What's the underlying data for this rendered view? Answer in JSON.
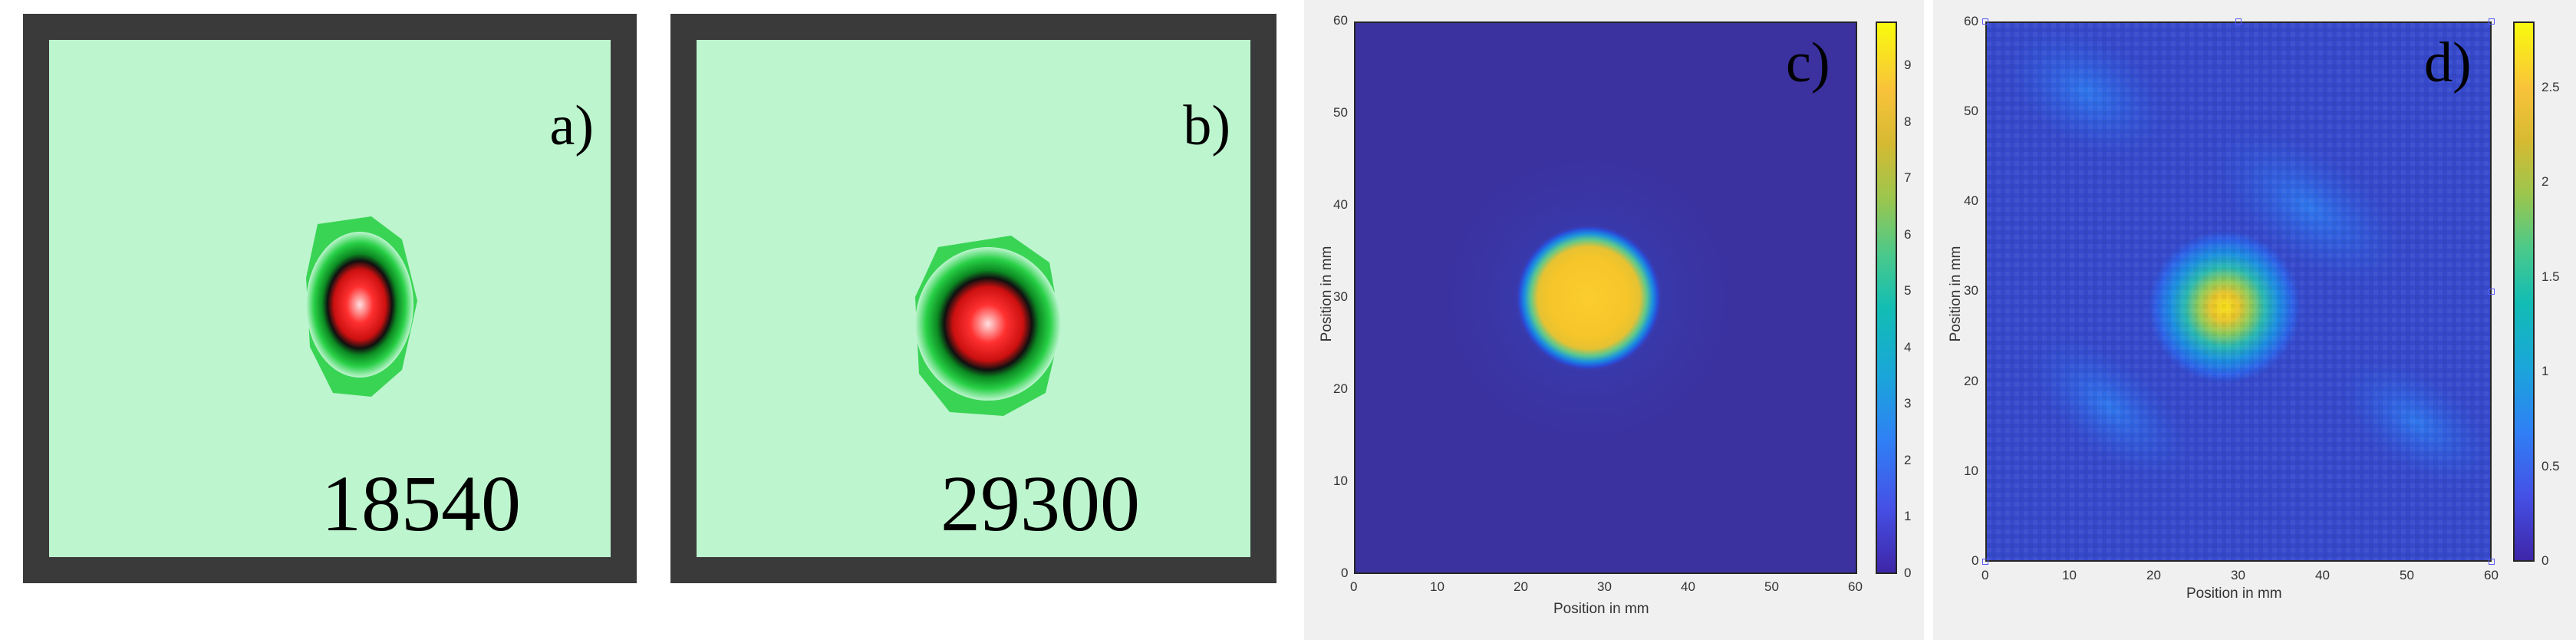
{
  "panels": {
    "a": {
      "letter": "a)",
      "number": "18540"
    },
    "b": {
      "letter": "b)",
      "number": "29300"
    },
    "c": {
      "letter": "c)",
      "xlabel": "Position in mm",
      "ylabel": "Position in mm",
      "x_ticks": [
        "0",
        "10",
        "20",
        "30",
        "40",
        "50",
        "60"
      ],
      "y_ticks": [
        "0",
        "10",
        "20",
        "30",
        "40",
        "50",
        "60"
      ],
      "colorbar_ticks": [
        "0",
        "1",
        "2",
        "3",
        "4",
        "5",
        "6",
        "7",
        "8",
        "9"
      ]
    },
    "d": {
      "letter": "d)",
      "xlabel": "Position in mm",
      "ylabel": "Position in mm",
      "x_ticks": [
        "0",
        "10",
        "20",
        "30",
        "40",
        "50",
        "60"
      ],
      "y_ticks": [
        "0",
        "10",
        "20",
        "30",
        "40",
        "50",
        "60"
      ],
      "colorbar_ticks": [
        "0",
        "0.5",
        "1",
        "1.5",
        "2",
        "2.5"
      ]
    }
  },
  "chart_data": [
    {
      "type": "heatmap",
      "panel": "c",
      "xlabel": "Position in mm",
      "ylabel": "Position in mm",
      "xlim": [
        0,
        60
      ],
      "ylim": [
        0,
        60
      ],
      "colorbar_range": [
        0,
        9.8
      ],
      "colormap": "parula",
      "spot": {
        "center_x": 28,
        "center_y": 30,
        "radius_mm": 6.5,
        "peak": 9.5,
        "background": 0.4
      }
    },
    {
      "type": "heatmap",
      "panel": "d",
      "xlabel": "Position in mm",
      "ylabel": "Position in mm",
      "xlim": [
        0,
        60
      ],
      "ylim": [
        0,
        60
      ],
      "colorbar_range": [
        0,
        2.85
      ],
      "colormap": "parula",
      "spot": {
        "center_x": 29,
        "center_y": 29,
        "radius_mm": 10,
        "peak": 2.6,
        "background": 0.4
      }
    }
  ],
  "colors": {
    "frame": "#3a3a3a",
    "spot_background": "#bdf5cf",
    "spot_core": "#ff2a2a",
    "spot_halo": "#22cc44",
    "plot_background": "#f0f0f0"
  }
}
